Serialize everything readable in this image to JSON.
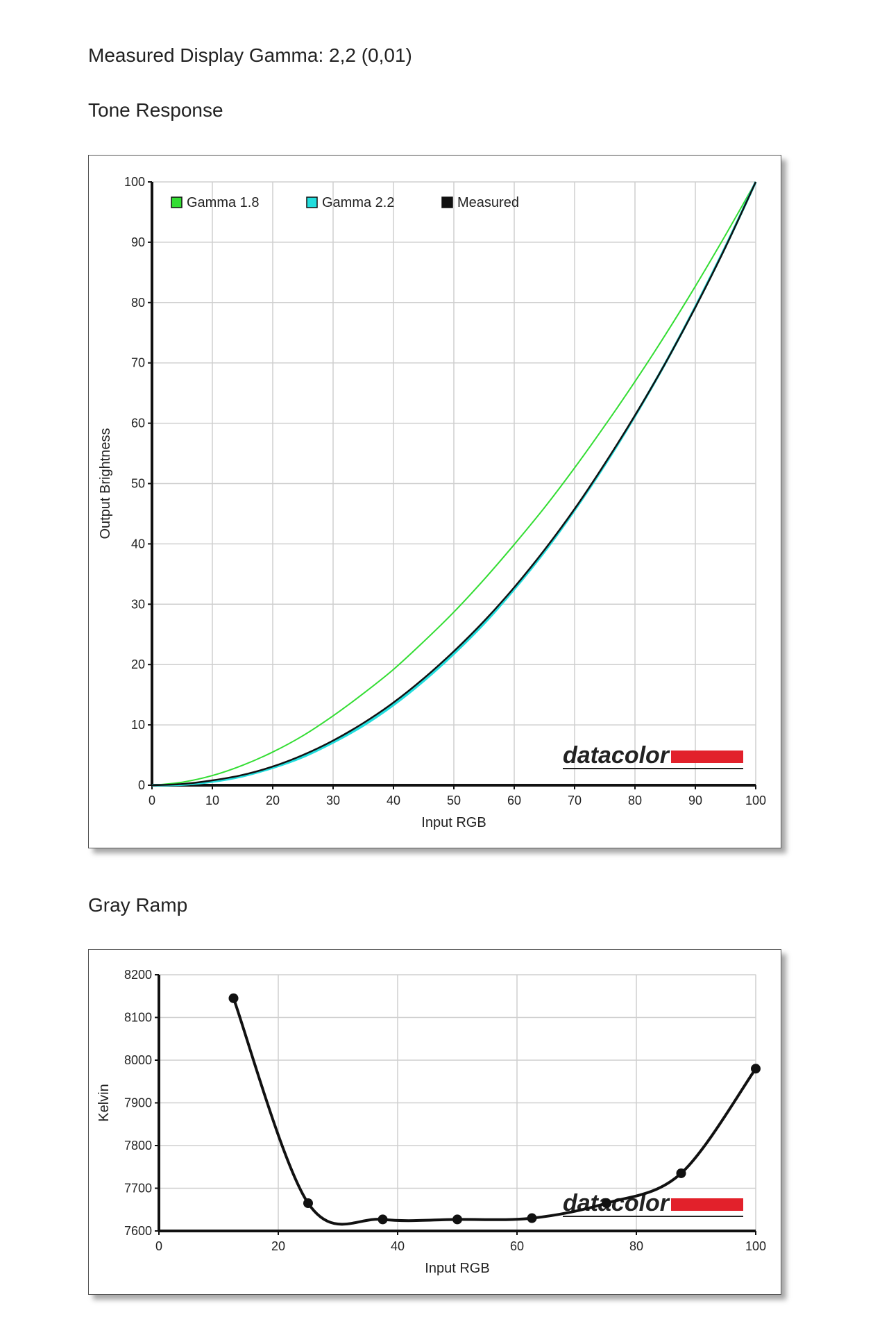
{
  "headings": {
    "measured_gamma": "Measured Display Gamma: 2,2 (0,01)",
    "tone_response": "Tone Response",
    "gray_ramp": "Gray Ramp"
  },
  "brand": {
    "logo_text": "datacolor",
    "logo_color": "#e2212b"
  },
  "chart_data": [
    {
      "type": "line",
      "title": "Tone Response",
      "xlabel": "Input RGB",
      "ylabel": "Output Brightness",
      "xlim": [
        0,
        100
      ],
      "ylim": [
        0,
        100
      ],
      "xticks": [
        0,
        10,
        20,
        30,
        40,
        50,
        60,
        70,
        80,
        90,
        100
      ],
      "yticks": [
        0,
        10,
        20,
        30,
        40,
        50,
        60,
        70,
        80,
        90,
        100
      ],
      "grid": true,
      "legend_position": "top-left",
      "series": [
        {
          "name": "Gamma 1.8",
          "color": "#33dd33",
          "x": [
            0,
            5,
            10,
            15,
            20,
            25,
            30,
            35,
            40,
            45,
            50,
            55,
            60,
            65,
            70,
            75,
            80,
            85,
            90,
            95,
            100
          ],
          "y": [
            0,
            0.5,
            1.6,
            3.3,
            5.5,
            8.2,
            11.5,
            15.2,
            19.2,
            23.8,
            28.7,
            34.1,
            39.9,
            46.0,
            52.6,
            59.6,
            66.9,
            74.6,
            82.7,
            91.2,
            100
          ]
        },
        {
          "name": "Gamma 2.2",
          "color": "#22dddd",
          "x": [
            0,
            5,
            10,
            15,
            20,
            25,
            30,
            35,
            40,
            45,
            50,
            55,
            60,
            65,
            70,
            75,
            80,
            85,
            90,
            95,
            100
          ],
          "y": [
            0,
            0.1,
            0.6,
            1.5,
            2.9,
            4.7,
            7.1,
            9.9,
            13.3,
            17.3,
            21.8,
            26.8,
            32.5,
            38.7,
            45.6,
            53.1,
            61.2,
            69.9,
            79.3,
            89.3,
            100
          ]
        },
        {
          "name": "Measured",
          "color": "#111111",
          "x": [
            0,
            5,
            10,
            15,
            20,
            25,
            30,
            35,
            40,
            45,
            50,
            55,
            60,
            65,
            70,
            75,
            80,
            85,
            90,
            95,
            100
          ],
          "y": [
            0,
            0.2,
            0.8,
            1.7,
            3.1,
            5.0,
            7.4,
            10.3,
            13.7,
            17.7,
            22.2,
            27.2,
            32.8,
            39.0,
            45.8,
            53.3,
            61.3,
            69.9,
            79.2,
            89.2,
            100
          ]
        }
      ]
    },
    {
      "type": "line",
      "title": "Gray Ramp",
      "xlabel": "Input RGB",
      "ylabel": "Kelvin",
      "xlim": [
        0,
        100
      ],
      "ylim": [
        7600,
        8200
      ],
      "xticks": [
        0,
        20,
        40,
        60,
        80,
        100
      ],
      "yticks": [
        7600,
        7700,
        7800,
        7900,
        8000,
        8100,
        8200
      ],
      "grid": true,
      "series": [
        {
          "color": "#111111",
          "x": [
            12.5,
            25,
            37.5,
            50,
            62.5,
            75,
            87.5,
            100
          ],
          "y": [
            8145,
            7665,
            7627,
            7627,
            7630,
            7665,
            7735,
            7980
          ]
        }
      ]
    }
  ]
}
